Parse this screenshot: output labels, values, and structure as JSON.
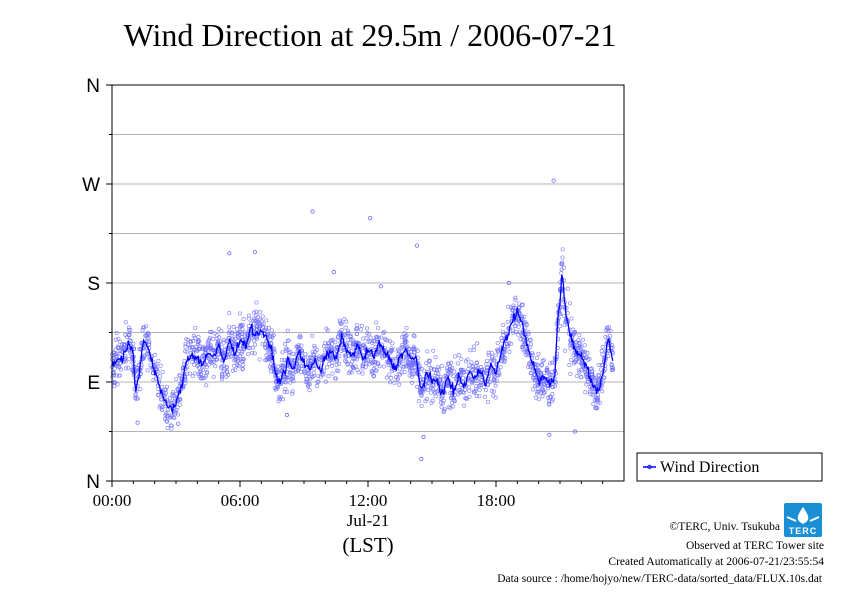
{
  "chart_data": {
    "type": "scatter",
    "title": "Wind Direction at 29.5m / 2006-07-21",
    "xlabel_date": "Jul-21",
    "xlabel_unit": "(LST)",
    "x_unit": "hours",
    "xlim": [
      0,
      24
    ],
    "ylim": [
      0,
      360
    ],
    "x_ticks": [
      {
        "value": 0,
        "label": "00:00"
      },
      {
        "value": 6,
        "label": "06:00"
      },
      {
        "value": 12,
        "label": "12:00"
      },
      {
        "value": 18,
        "label": "18:00"
      }
    ],
    "y_ticks": [
      {
        "value": 0,
        "label": "N"
      },
      {
        "value": 90,
        "label": "E"
      },
      {
        "value": 180,
        "label": "S"
      },
      {
        "value": 270,
        "label": "W"
      },
      {
        "value": 360,
        "label": "N"
      }
    ],
    "y_minor_gridlines": [
      45,
      135,
      225,
      315
    ],
    "grid": true,
    "legend_position": "right-bottom",
    "series": [
      {
        "name": "Wind Direction",
        "color": "#0000ff",
        "marker": "open-circle",
        "line": [
          [
            0.0,
            105
          ],
          [
            0.25,
            112
          ],
          [
            0.5,
            110
          ],
          [
            0.75,
            125
          ],
          [
            1.0,
            115
          ],
          [
            1.1,
            80
          ],
          [
            1.25,
            95
          ],
          [
            1.5,
            130
          ],
          [
            1.75,
            118
          ],
          [
            2.0,
            100
          ],
          [
            2.25,
            85
          ],
          [
            2.5,
            70
          ],
          [
            2.75,
            65
          ],
          [
            3.0,
            70
          ],
          [
            3.25,
            85
          ],
          [
            3.5,
            110
          ],
          [
            3.75,
            115
          ],
          [
            4.0,
            112
          ],
          [
            4.25,
            105
          ],
          [
            4.5,
            118
          ],
          [
            4.75,
            112
          ],
          [
            5.0,
            122
          ],
          [
            5.25,
            108
          ],
          [
            5.5,
            128
          ],
          [
            5.75,
            115
          ],
          [
            6.0,
            130
          ],
          [
            6.25,
            122
          ],
          [
            6.5,
            140
          ],
          [
            6.75,
            132
          ],
          [
            7.0,
            138
          ],
          [
            7.25,
            128
          ],
          [
            7.5,
            118
          ],
          [
            7.75,
            90
          ],
          [
            8.0,
            95
          ],
          [
            8.25,
            110
          ],
          [
            8.5,
            100
          ],
          [
            8.75,
            118
          ],
          [
            9.0,
            108
          ],
          [
            9.25,
            100
          ],
          [
            9.5,
            112
          ],
          [
            9.75,
            100
          ],
          [
            10.0,
            112
          ],
          [
            10.25,
            118
          ],
          [
            10.5,
            110
          ],
          [
            10.75,
            130
          ],
          [
            11.0,
            120
          ],
          [
            11.25,
            112
          ],
          [
            11.5,
            125
          ],
          [
            11.75,
            110
          ],
          [
            12.0,
            120
          ],
          [
            12.25,
            112
          ],
          [
            12.5,
            125
          ],
          [
            12.75,
            118
          ],
          [
            13.0,
            112
          ],
          [
            13.25,
            102
          ],
          [
            13.5,
            112
          ],
          [
            13.75,
            120
          ],
          [
            14.0,
            110
          ],
          [
            14.25,
            112
          ],
          [
            14.5,
            82
          ],
          [
            14.75,
            98
          ],
          [
            15.0,
            90
          ],
          [
            15.25,
            92
          ],
          [
            15.5,
            78
          ],
          [
            15.75,
            95
          ],
          [
            16.0,
            80
          ],
          [
            16.25,
            95
          ],
          [
            16.5,
            85
          ],
          [
            16.75,
            100
          ],
          [
            17.0,
            92
          ],
          [
            17.25,
            102
          ],
          [
            17.5,
            90
          ],
          [
            17.75,
            105
          ],
          [
            18.0,
            98
          ],
          [
            18.25,
            118
          ],
          [
            18.5,
            130
          ],
          [
            18.75,
            145
          ],
          [
            19.0,
            155
          ],
          [
            19.25,
            140
          ],
          [
            19.5,
            122
          ],
          [
            19.75,
            105
          ],
          [
            20.0,
            90
          ],
          [
            20.25,
            95
          ],
          [
            20.5,
            88
          ],
          [
            20.75,
            92
          ],
          [
            20.9,
            150
          ],
          [
            21.0,
            165
          ],
          [
            21.1,
            190
          ],
          [
            21.25,
            155
          ],
          [
            21.5,
            132
          ],
          [
            21.75,
            118
          ],
          [
            22.0,
            112
          ],
          [
            22.25,
            105
          ],
          [
            22.5,
            90
          ],
          [
            22.75,
            80
          ],
          [
            23.0,
            98
          ],
          [
            23.25,
            128
          ],
          [
            23.5,
            110
          ]
        ],
        "outliers": [
          [
            9.4,
            245
          ],
          [
            12.1,
            239
          ],
          [
            14.3,
            214
          ],
          [
            20.7,
            273
          ],
          [
            21.1,
            197
          ],
          [
            5.5,
            207
          ],
          [
            6.7,
            208
          ],
          [
            10.4,
            190
          ],
          [
            12.6,
            177
          ],
          [
            8.2,
            60
          ],
          [
            14.6,
            40
          ],
          [
            14.5,
            20
          ],
          [
            20.5,
            42
          ],
          [
            21.7,
            45
          ],
          [
            3.1,
            52
          ],
          [
            1.2,
            53
          ],
          [
            18.6,
            180
          ]
        ]
      }
    ]
  },
  "legend": {
    "label": "Wind Direction"
  },
  "credits": {
    "copyright": "©TERC, Univ. Tsukuba",
    "observed": "Observed at TERC Tower site",
    "created": "Created Automatically at 2006-07-21/23:55:54",
    "source": "Data source : /home/hojyo/new/TERC-data/sorted_data/FLUX.10s.dat"
  },
  "logo": {
    "text": "TERC"
  }
}
